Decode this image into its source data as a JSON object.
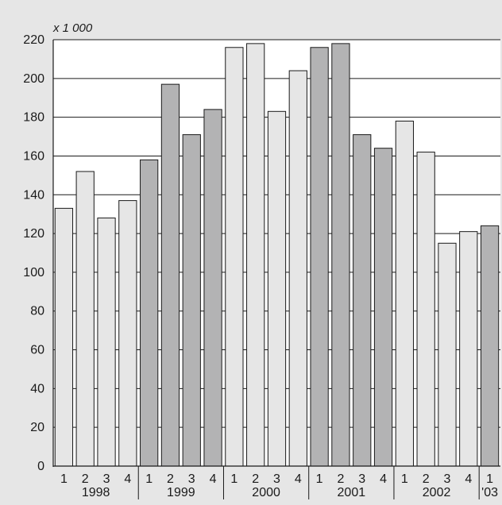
{
  "chart_data": {
    "type": "bar",
    "unit_label": "x 1 000",
    "title": "",
    "xlabel": "",
    "ylabel": "",
    "ylim": [
      0,
      220
    ],
    "y_ticks": [
      0,
      20,
      40,
      60,
      80,
      100,
      120,
      140,
      160,
      180,
      200,
      220
    ],
    "grid": true,
    "legend": "none",
    "categories": [
      "1",
      "2",
      "3",
      "4",
      "1",
      "2",
      "3",
      "4",
      "1",
      "2",
      "3",
      "4",
      "1",
      "2",
      "3",
      "4",
      "1",
      "2",
      "3",
      "4",
      "1"
    ],
    "groups": [
      {
        "label": "1998",
        "count": 4
      },
      {
        "label": "1999",
        "count": 4
      },
      {
        "label": "2000",
        "count": 4
      },
      {
        "label": "2001",
        "count": 4
      },
      {
        "label": "2002",
        "count": 4
      },
      {
        "label": "'03",
        "count": 1
      }
    ],
    "values": [
      133,
      152,
      128,
      137,
      158,
      197,
      171,
      184,
      216,
      218,
      183,
      204,
      216,
      218,
      171,
      164,
      178,
      162,
      115,
      121,
      124
    ],
    "colors": {
      "light": "#e6e6e6",
      "dark": "#b3b3b4",
      "plot_bg": "#ffffff",
      "page_bg": "#e6e6e6",
      "stroke": "#1a1a1a"
    }
  }
}
